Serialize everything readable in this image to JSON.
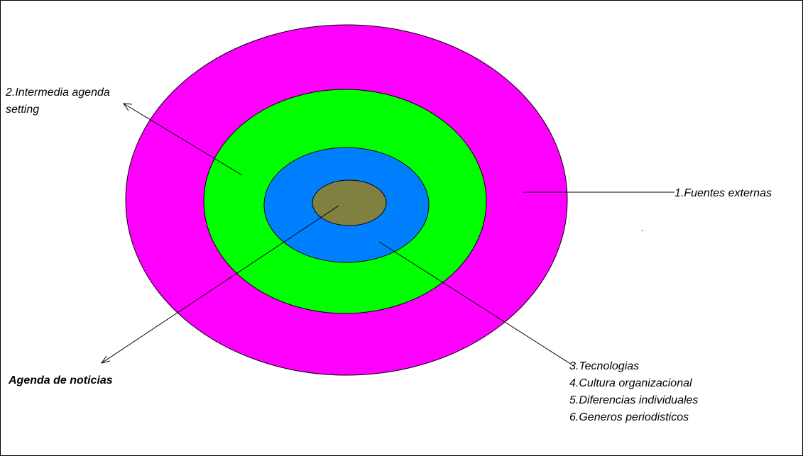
{
  "diagram": {
    "labels": {
      "intermedia": [
        "2.Intermedia agenda",
        "setting"
      ],
      "fuentes": "1.Fuentes externas",
      "agenda": "Agenda de noticias",
      "inner": [
        "3.Tecnologias",
        "4.Cultura organizacional",
        "5.Diferencias individuales",
        "6.Generos periodisticos"
      ]
    }
  }
}
